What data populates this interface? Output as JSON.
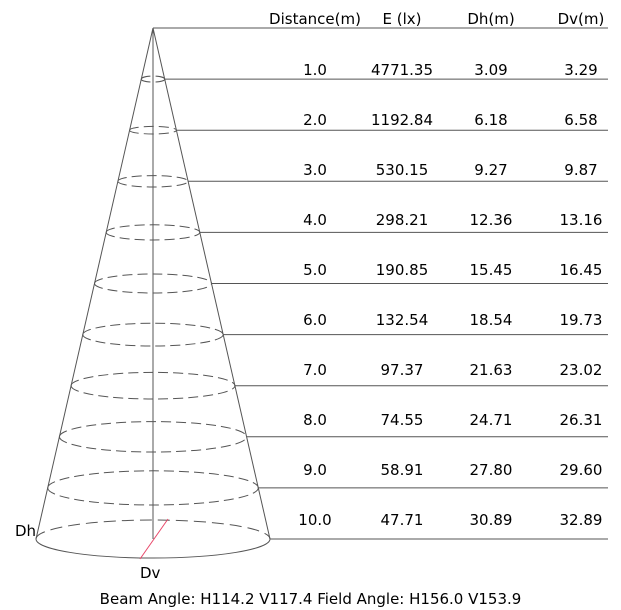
{
  "table": {
    "headers": {
      "distance": "Distance(m)",
      "illuminance": "E (lx)",
      "dh": "Dh(m)",
      "dv": "Dv(m)"
    },
    "rows": [
      {
        "distance": "1.0",
        "illuminance": "4771.35",
        "dh": "3.09",
        "dv": "3.29"
      },
      {
        "distance": "2.0",
        "illuminance": "1192.84",
        "dh": "6.18",
        "dv": "6.58"
      },
      {
        "distance": "3.0",
        "illuminance": "530.15",
        "dh": "9.27",
        "dv": "9.87"
      },
      {
        "distance": "4.0",
        "illuminance": "298.21",
        "dh": "12.36",
        "dv": "13.16"
      },
      {
        "distance": "5.0",
        "illuminance": "190.85",
        "dh": "15.45",
        "dv": "16.45"
      },
      {
        "distance": "6.0",
        "illuminance": "132.54",
        "dh": "18.54",
        "dv": "19.73"
      },
      {
        "distance": "7.0",
        "illuminance": "97.37",
        "dh": "21.63",
        "dv": "23.02"
      },
      {
        "distance": "8.0",
        "illuminance": "74.55",
        "dh": "24.71",
        "dv": "26.31"
      },
      {
        "distance": "9.0",
        "illuminance": "58.91",
        "dh": "27.80",
        "dv": "29.60"
      },
      {
        "distance": "10.0",
        "illuminance": "47.71",
        "dh": "30.89",
        "dv": "32.89"
      }
    ]
  },
  "diagram": {
    "dh_label": "Dh",
    "dv_label": "Dv",
    "line_color": "#555555",
    "dv_line_color": "#e8486a"
  },
  "footer": {
    "text": "Beam Angle: H114.2 V117.4  Field Angle: H156.0 V153.9"
  }
}
